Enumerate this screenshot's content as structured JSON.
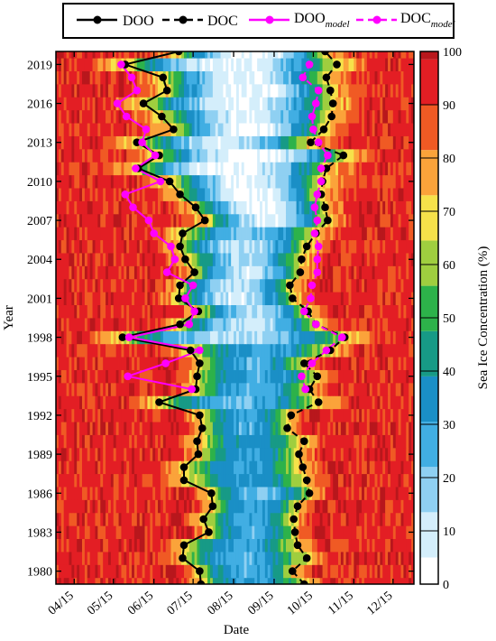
{
  "chart_data": {
    "type": "heatmap",
    "title": "",
    "xlabel": "Date",
    "ylabel": "Year",
    "x_ticks": [
      "04/15",
      "05/15",
      "06/15",
      "07/15",
      "08/15",
      "09/15",
      "10/15",
      "11/15",
      "12/15"
    ],
    "x_range_day_of_year": [
      91,
      365
    ],
    "x_tick_day_of_year": [
      105,
      135,
      166,
      196,
      227,
      258,
      288,
      319,
      349
    ],
    "y_ticks": [
      "1980",
      "1983",
      "1986",
      "1989",
      "1992",
      "1995",
      "1998",
      "2001",
      "2004",
      "2007",
      "2010",
      "2013",
      "2016",
      "2019"
    ],
    "y_range": [
      1979,
      2020
    ],
    "colorbar": {
      "label": "Sea Ice Concentration (%)",
      "ticks": [
        "0",
        "10",
        "20",
        "30",
        "40",
        "50",
        "60",
        "70",
        "80",
        "90",
        "100"
      ],
      "range": [
        0,
        100
      ],
      "colors": [
        "#ffffff",
        "#d4eefb",
        "#8fd0f2",
        "#41aee3",
        "#1a8fc6",
        "#179a86",
        "#2db24a",
        "#9fce3f",
        "#f6e24a",
        "#fba33a",
        "#f05a24",
        "#e31e24",
        "#b8171c"
      ]
    },
    "legend": {
      "placement": "top",
      "entries": [
        {
          "label": "DOO",
          "subscript": "",
          "color": "#000000",
          "style": "solid"
        },
        {
          "label": "DOC",
          "subscript": "",
          "color": "#000000",
          "style": "dashed"
        },
        {
          "label": "DOO",
          "subscript": "model",
          "color": "#ff00ff",
          "style": "solid"
        },
        {
          "label": "DOC",
          "subscript": "model",
          "color": "#ff00ff",
          "style": "dashed"
        }
      ]
    },
    "series": [
      {
        "name": "DOO",
        "color": "#000000",
        "style": "solid",
        "years": [
          1979,
          1980,
          1981,
          1982,
          1983,
          1984,
          1985,
          1986,
          1987,
          1988,
          1989,
          1990,
          1991,
          1992,
          1993,
          1994,
          1995,
          1996,
          1997,
          1998,
          1999,
          2000,
          2001,
          2002,
          2003,
          2004,
          2005,
          2006,
          2007,
          2008,
          2009,
          2010,
          2011,
          2012,
          2013,
          2014,
          2015,
          2016,
          2017,
          2018,
          2019,
          2020
        ],
        "day_of_year": [
          202,
          201,
          188,
          189,
          208,
          204,
          211,
          210,
          189,
          189,
          200,
          199,
          203,
          201,
          170,
          198,
          199,
          201,
          194,
          142,
          186,
          200,
          185,
          186,
          197,
          190,
          186,
          188,
          205,
          198,
          186,
          178,
          154,
          170,
          153,
          181,
          172,
          158,
          176,
          173,
          144,
          185
        ]
      },
      {
        "name": "DOC",
        "color": "#000000",
        "style": "dashed",
        "years": [
          1979,
          1980,
          1981,
          1982,
          1983,
          1984,
          1985,
          1986,
          1987,
          1988,
          1989,
          1990,
          1991,
          1992,
          1993,
          1994,
          1995,
          1996,
          1997,
          1998,
          1999,
          2000,
          2001,
          2002,
          2003,
          2004,
          2005,
          2006,
          2007,
          2008,
          2009,
          2010,
          2011,
          2012,
          2013,
          2014,
          2015,
          2016,
          2017,
          2018,
          2019,
          2020
        ],
        "day_of_year": [
          281,
          272,
          283,
          276,
          274,
          273,
          276,
          285,
          283,
          280,
          277,
          281,
          268,
          271,
          292,
          285,
          291,
          281,
          301,
          312,
          290,
          284,
          272,
          270,
          278,
          279,
          283,
          290,
          299,
          297,
          294,
          295,
          298,
          311,
          286,
          296,
          302,
          303,
          301,
          298,
          306,
          297
        ]
      },
      {
        "name": "DOO model",
        "color": "#ff00ff",
        "style": "solid",
        "years": [
          1994,
          1995,
          1996,
          1997,
          1998,
          1999,
          2000,
          2001,
          2002,
          2003,
          2004,
          2005,
          2006,
          2007,
          2008,
          2009,
          2010,
          2011,
          2012,
          2013,
          2014,
          2015,
          2016,
          2017,
          2018,
          2019
        ],
        "day_of_year": [
          195,
          146,
          175,
          201,
          147,
          193,
          197,
          190,
          196,
          176,
          182,
          179,
          166,
          162,
          150,
          144,
          171,
          152,
          167,
          157,
          160,
          145,
          138,
          153,
          149,
          141
        ]
      },
      {
        "name": "DOC model",
        "color": "#ff00ff",
        "style": "dashed",
        "years": [
          1994,
          1995,
          1996,
          1997,
          1998,
          1999,
          2000,
          2001,
          2002,
          2003,
          2004,
          2005,
          2006,
          2007,
          2008,
          2009,
          2010,
          2011,
          2012,
          2013,
          2014,
          2015,
          2016,
          2017,
          2018,
          2019
        ],
        "day_of_year": [
          282,
          279,
          287,
          298,
          310,
          290,
          281,
          286,
          287,
          291,
          291,
          292,
          289,
          291,
          289,
          291,
          294,
          294,
          299,
          292,
          288,
          287,
          290,
          292,
          280,
          285
        ]
      }
    ]
  }
}
